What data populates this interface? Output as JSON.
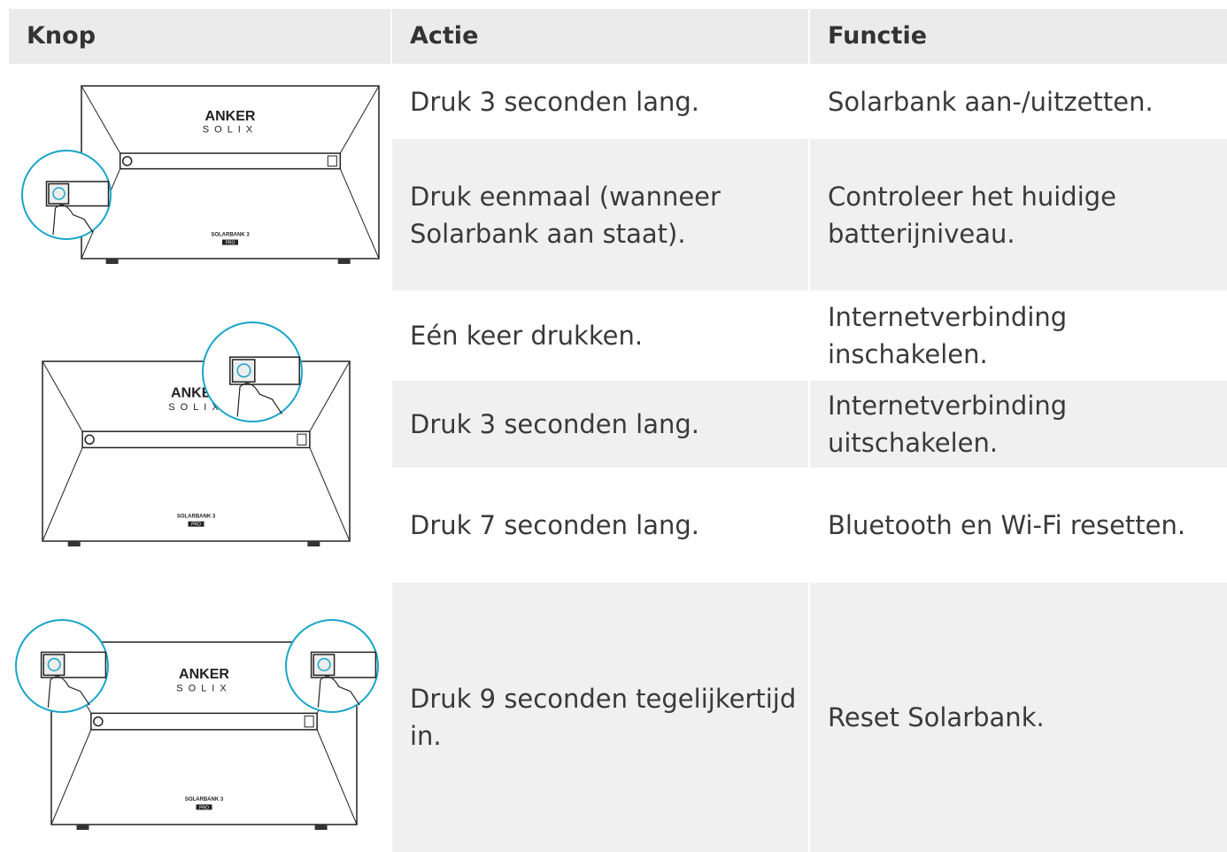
{
  "header": {
    "columns": [
      "Knop",
      "Actie",
      "Functie"
    ]
  },
  "rows": [
    {
      "action": "Druk 3 seconden lang.",
      "function": "Solarbank aan-/uitzetten."
    },
    {
      "action": "Druk eenmaal (wanneer Solarbank aan staat).",
      "function": "Controleer het huidige batterijniveau."
    },
    {
      "action": "Eén keer drukken.",
      "function": "Internetverbinding inschakelen."
    },
    {
      "action": "Druk 3 seconden lang.",
      "function": "Internetverbinding uitschakelen."
    },
    {
      "action": "Druk 7 seconden lang.",
      "function": "Bluetooth en Wi-Fi resetten."
    },
    {
      "action": "Druk 9 seconden tegelijkertijd in.",
      "function": "Reset Solarbank."
    }
  ],
  "illustrations": [
    {
      "brand": "ANKER",
      "sub": "SOLIX",
      "model": "SOLARBANK 3",
      "badge": "PRO"
    },
    {
      "brand": "ANKER",
      "sub": "SOLIX",
      "model": "SOLARBANK 3",
      "badge": "PRO"
    },
    {
      "brand": "ANKER",
      "sub": "SOLIX",
      "model": "SOLARBANK 3",
      "badge": "PRO"
    }
  ]
}
